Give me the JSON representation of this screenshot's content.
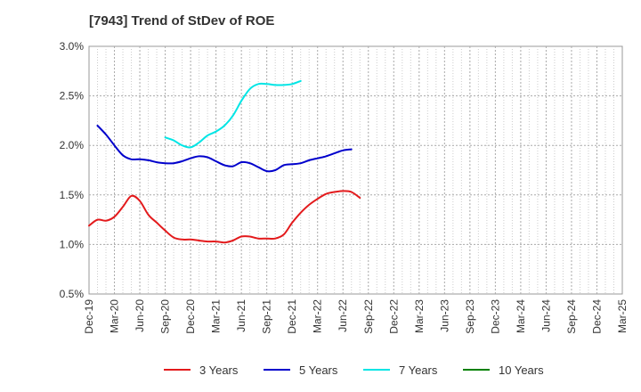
{
  "chart_data": {
    "type": "line",
    "title": "[7943]  Trend of StDev of ROE",
    "xlabel": "",
    "ylabel": "",
    "ylim": [
      0.5,
      3.0
    ],
    "y_ticks": [
      "0.5%",
      "1.0%",
      "1.5%",
      "2.0%",
      "2.5%",
      "3.0%"
    ],
    "y_tick_values": [
      0.5,
      1.0,
      1.5,
      2.0,
      2.5,
      3.0
    ],
    "x_tick_labels": [
      "Dec-19",
      "Mar-20",
      "Jun-20",
      "Sep-20",
      "Dec-20",
      "Mar-21",
      "Jun-21",
      "Sep-21",
      "Dec-21",
      "Mar-22",
      "Jun-22",
      "Sep-22",
      "Dec-22",
      "Mar-23",
      "Jun-23",
      "Sep-23",
      "Dec-23",
      "Mar-24",
      "Jun-24",
      "Sep-24",
      "Dec-24",
      "Mar-25"
    ],
    "grid": true,
    "legend_position": "bottom",
    "series": [
      {
        "name": "3 Years",
        "color": "#e31a1c",
        "start_index": 0,
        "values": [
          1.19,
          1.25,
          1.24,
          1.28,
          1.38,
          1.49,
          1.44,
          1.3,
          1.22,
          1.14,
          1.07,
          1.05,
          1.05,
          1.04,
          1.03,
          1.03,
          1.02,
          1.04,
          1.08,
          1.08,
          1.06,
          1.06,
          1.06,
          1.1,
          1.22,
          1.32,
          1.4,
          1.46,
          1.51,
          1.53,
          1.54,
          1.53,
          1.47
        ]
      },
      {
        "name": "5 Years",
        "color": "#0000cc",
        "start_index": 1,
        "values": [
          2.2,
          2.11,
          2.0,
          1.9,
          1.86,
          1.86,
          1.85,
          1.83,
          1.82,
          1.82,
          1.84,
          1.87,
          1.89,
          1.88,
          1.84,
          1.8,
          1.79,
          1.83,
          1.82,
          1.78,
          1.74,
          1.75,
          1.8,
          1.81,
          1.82,
          1.85,
          1.87,
          1.89,
          1.92,
          1.95,
          1.96
        ]
      },
      {
        "name": "7 Years",
        "color": "#00e5e5",
        "start_index": 9,
        "values": [
          2.08,
          2.05,
          2.0,
          1.98,
          2.03,
          2.1,
          2.14,
          2.2,
          2.3,
          2.45,
          2.57,
          2.62,
          2.62,
          2.61,
          2.61,
          2.62,
          2.65
        ]
      },
      {
        "name": "10 Years",
        "color": "#008000",
        "start_index": 0,
        "values": []
      }
    ]
  }
}
